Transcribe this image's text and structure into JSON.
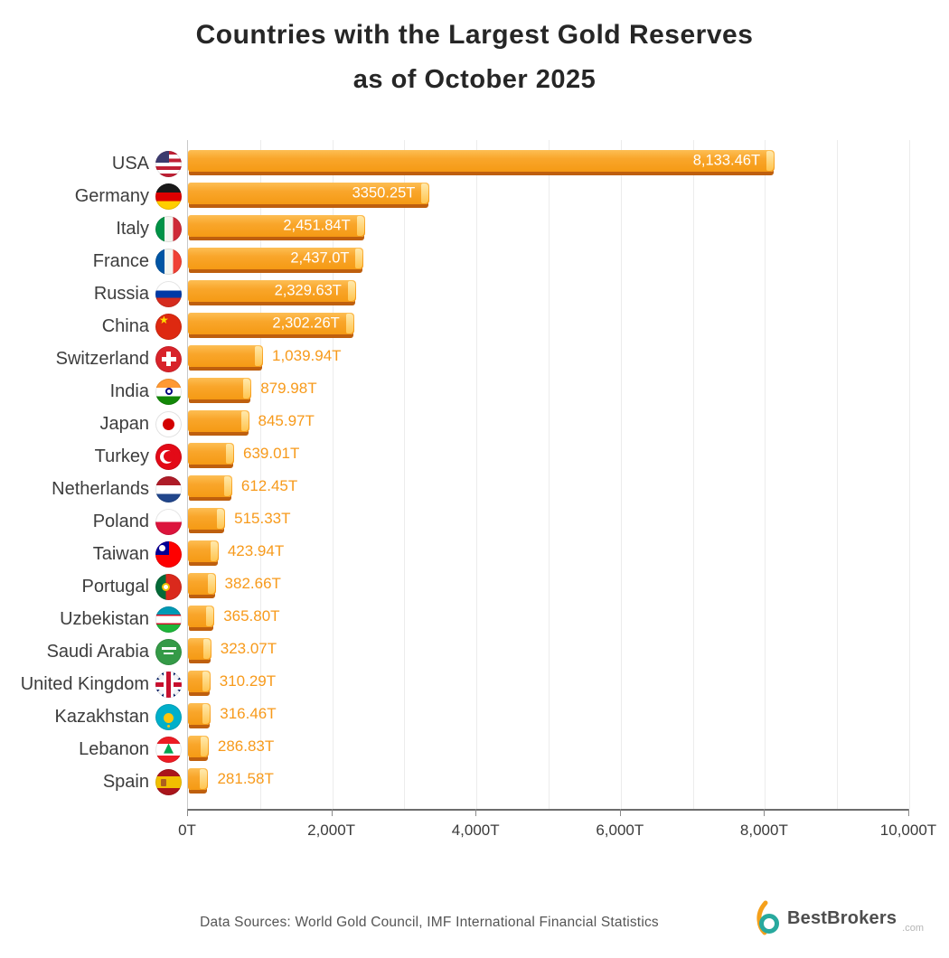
{
  "title": {
    "line1": "Countries with the Largest Gold Reserves",
    "line2": "as of October 2025"
  },
  "chart_data": {
    "type": "bar",
    "orientation": "horizontal",
    "title": "Countries with the Largest Gold Reserves as of October 2025",
    "unit": "tonnes (T)",
    "xlim": [
      0,
      10000
    ],
    "x_tick_values": [
      0,
      2000,
      4000,
      6000,
      8000,
      10000
    ],
    "x_tick_labels": [
      "0T",
      "2,000T",
      "4,000T",
      "6,000T",
      "8,000T",
      "10,000T"
    ],
    "gridlines": "vertical every 1000T",
    "legend": "none",
    "bar_color": "#F6A01F",
    "bar_shadow_color": "#BE5F0E",
    "value_label_color_inside": "#FFFFFF",
    "value_label_color_outside": "#F79A1B",
    "categories": [
      "USA",
      "Germany",
      "Italy",
      "France",
      "Russia",
      "China",
      "Switzerland",
      "India",
      "Japan",
      "Turkey",
      "Netherlands",
      "Poland",
      "Taiwan",
      "Portugal",
      "Uzbekistan",
      "Saudi Arabia",
      "United Kingdom",
      "Kazakhstan",
      "Lebanon",
      "Spain"
    ],
    "values": [
      8133.46,
      3350.25,
      2451.84,
      2437.0,
      2329.63,
      2302.26,
      1039.94,
      879.98,
      845.97,
      639.01,
      612.45,
      515.33,
      423.94,
      382.66,
      365.8,
      323.07,
      310.29,
      316.46,
      286.83,
      281.58
    ],
    "value_labels": [
      "8,133.46T",
      "3350.25T",
      "2,451.84T",
      "2,437.0T",
      "2,329.63T",
      "2,302.26T",
      "1,039.94T",
      "879.98T",
      "845.97T",
      "639.01T",
      "612.45T",
      "515.33T",
      "423.94T",
      "382.66T",
      "365.80T",
      "323.07T",
      "310.29T",
      "316.46T",
      "286.83T",
      "281.58T"
    ],
    "flags": [
      "usa-flag-icon",
      "germany-flag-icon",
      "italy-flag-icon",
      "france-flag-icon",
      "russia-flag-icon",
      "china-flag-icon",
      "switzerland-flag-icon",
      "india-flag-icon",
      "japan-flag-icon",
      "turkey-flag-icon",
      "netherlands-flag-icon",
      "poland-flag-icon",
      "taiwan-flag-icon",
      "portugal-flag-icon",
      "uzbekistan-flag-icon",
      "saudi-arabia-flag-icon",
      "united-kingdom-flag-icon",
      "kazakhstan-flag-icon",
      "lebanon-flag-icon",
      "spain-flag-icon"
    ]
  },
  "footer": {
    "sources": "Data Sources: World Gold Council, IMF International Financial Statistics",
    "brand": "BestBrokers",
    "brand_suffix": ".com",
    "logo_orange": "#F5A01B",
    "logo_teal": "#28A99E"
  }
}
